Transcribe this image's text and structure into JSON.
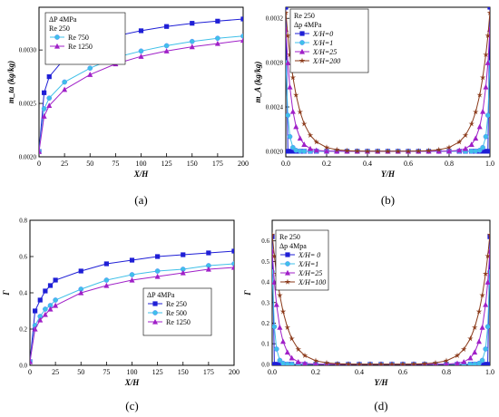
{
  "chart_data": [
    {
      "type": "line",
      "panel_label": "(a)",
      "xlabel": "X/H",
      "ylabel": "m_ta (kg/kg)",
      "xlim": [
        0,
        200
      ],
      "ylim": [
        0.002,
        0.0034
      ],
      "xticks": [
        0,
        25,
        50,
        75,
        100,
        125,
        150,
        175,
        200
      ],
      "yticks": [
        0.002,
        0.0025,
        0.003
      ],
      "ytick_labels": [
        "0.0020",
        "0.0025",
        "0.0030"
      ],
      "legend": {
        "position": "top-left",
        "header": [
          "ΔP 4MPa",
          "Re 250"
        ]
      },
      "series": [
        {
          "name": "",
          "color": "#1f1fd6",
          "marker": "square",
          "x": [
            0,
            5,
            10,
            25,
            50,
            75,
            100,
            125,
            150,
            175,
            200
          ],
          "y": [
            0.00205,
            0.0026,
            0.00275,
            0.00292,
            0.00305,
            0.00313,
            0.00318,
            0.00322,
            0.00325,
            0.00327,
            0.00329
          ]
        },
        {
          "name": "Re 750",
          "color": "#3fc0e8",
          "marker": "circle",
          "x": [
            0,
            5,
            10,
            25,
            50,
            75,
            100,
            125,
            150,
            175,
            200
          ],
          "y": [
            0.00205,
            0.00245,
            0.00255,
            0.0027,
            0.00283,
            0.00293,
            0.00299,
            0.00304,
            0.00308,
            0.00311,
            0.00313
          ]
        },
        {
          "name": "Re 1250",
          "color": "#a020c8",
          "marker": "triangle",
          "x": [
            0,
            5,
            10,
            25,
            50,
            75,
            100,
            125,
            150,
            175,
            200
          ],
          "y": [
            0.00205,
            0.00238,
            0.00248,
            0.00263,
            0.00277,
            0.00287,
            0.00294,
            0.00299,
            0.00303,
            0.00306,
            0.00309
          ]
        }
      ]
    },
    {
      "type": "line",
      "panel_label": "(b)",
      "xlabel": "Y/H",
      "ylabel": "m_A (kg/kg)",
      "xlim": [
        0,
        1
      ],
      "ylim": [
        0.00195,
        0.0033
      ],
      "xticks": [
        0,
        0.2,
        0.4,
        0.6,
        0.8,
        1.0
      ],
      "xtick_labels": [
        "0.0",
        "0.2",
        "0.4",
        "0.6",
        "0.8",
        "1.0"
      ],
      "yticks": [
        0.002,
        0.0024,
        0.0028,
        0.0032
      ],
      "ytick_labels": [
        "0.0020",
        "0.0024",
        "0.0028",
        "0.0032"
      ],
      "legend": {
        "position": "top-center",
        "header": [
          "Re 250",
          "Δp 4MPa"
        ]
      },
      "series": [
        {
          "name": "X/H=0",
          "color": "#1f1fd6",
          "marker": "square",
          "k": 1200,
          "amp": 0.0013
        },
        {
          "name": "X/H=1",
          "color": "#3fc0e8",
          "marker": "circle",
          "k": 90,
          "amp": 0.0008
        },
        {
          "name": "X/H=25",
          "color": "#a020c8",
          "marker": "triangle",
          "k": 32,
          "amp": 0.0011
        },
        {
          "name": "X/H=200",
          "color": "#8b3a1a",
          "marker": "star",
          "k": 18,
          "amp": 0.00125
        }
      ]
    },
    {
      "type": "line",
      "panel_label": "(c)",
      "xlabel": "X/H",
      "ylabel": "Γ",
      "xlim": [
        0,
        200
      ],
      "ylim": [
        0,
        0.8
      ],
      "xticks": [
        0,
        25,
        50,
        75,
        100,
        125,
        150,
        175,
        200
      ],
      "yticks": [
        0,
        0.2,
        0.4,
        0.6,
        0.8
      ],
      "ytick_labels": [
        "0.0",
        "0.2",
        "0.4",
        "0.6",
        "0.8"
      ],
      "legend": {
        "position": "center-right",
        "header": [
          "ΔP 4MPa"
        ]
      },
      "series": [
        {
          "name": "Re  250",
          "color": "#1f1fd6",
          "marker": "square",
          "x": [
            0,
            5,
            10,
            15,
            20,
            25,
            50,
            75,
            100,
            125,
            150,
            175,
            200
          ],
          "y": [
            0.02,
            0.3,
            0.36,
            0.41,
            0.44,
            0.47,
            0.52,
            0.56,
            0.58,
            0.6,
            0.61,
            0.62,
            0.63
          ]
        },
        {
          "name": "Re  500",
          "color": "#3fc0e8",
          "marker": "circle",
          "x": [
            0,
            5,
            10,
            15,
            20,
            25,
            50,
            75,
            100,
            125,
            150,
            175,
            200
          ],
          "y": [
            0.02,
            0.22,
            0.27,
            0.31,
            0.33,
            0.36,
            0.42,
            0.47,
            0.5,
            0.52,
            0.53,
            0.55,
            0.56
          ]
        },
        {
          "name": "Re 1250",
          "color": "#a020c8",
          "marker": "triangle",
          "x": [
            0,
            5,
            10,
            15,
            20,
            25,
            50,
            75,
            100,
            125,
            150,
            175,
            200
          ],
          "y": [
            0.02,
            0.2,
            0.25,
            0.28,
            0.31,
            0.33,
            0.4,
            0.44,
            0.47,
            0.49,
            0.51,
            0.53,
            0.54
          ]
        }
      ]
    },
    {
      "type": "line",
      "panel_label": "(d)",
      "xlabel": "Y/H",
      "ylabel": "Γ",
      "xlim": [
        0,
        1
      ],
      "ylim": [
        -0.005,
        0.7
      ],
      "xticks": [
        0,
        0.2,
        0.4,
        0.6,
        0.8,
        1.0
      ],
      "xtick_labels": [
        "0.0",
        "0.2",
        "0.4",
        "0.6",
        "0.8",
        "1.0"
      ],
      "yticks": [
        0,
        0.1,
        0.2,
        0.3,
        0.4,
        0.5,
        0.6
      ],
      "ytick_labels": [
        "0.0",
        "0.1",
        "0.2",
        "0.3",
        "0.4",
        "0.5",
        "0.6"
      ],
      "legend": {
        "position": "top-left",
        "header": [
          "Re 250",
          "Δp 4Mpa"
        ]
      },
      "series": [
        {
          "name": "X/H= 0",
          "color": "#1f1fd6",
          "marker": "square",
          "k": 1200,
          "amp": 0.62
        },
        {
          "name": "X/H=1",
          "color": "#3fc0e8",
          "marker": "circle",
          "k": 90,
          "amp": 0.45
        },
        {
          "name": "X/H=25",
          "color": "#a020c8",
          "marker": "triangle",
          "k": 32,
          "amp": 0.55
        },
        {
          "name": "X/H=100",
          "color": "#8b3a1a",
          "marker": "star",
          "k": 18,
          "amp": 0.63
        }
      ]
    }
  ]
}
